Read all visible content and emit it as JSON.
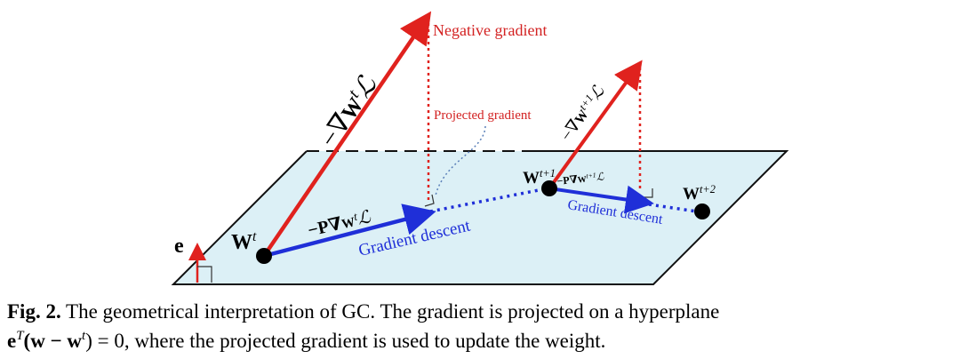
{
  "figure": {
    "labels": {
      "negative_gradient": "Negative gradient",
      "projected_gradient": "Projected gradient",
      "gradient_descent_1": "Gradient descent",
      "gradient_descent_2": "Gradient descent",
      "e": "e",
      "w_t": [
        "W",
        "t"
      ],
      "w_t1": [
        "W",
        "t+1"
      ],
      "w_t2": [
        "W",
        "t+2"
      ],
      "neg_grad_t": [
        "−∇",
        "W",
        "t",
        "ℒ"
      ],
      "proj_grad_t": [
        "−P∇",
        "W",
        "t",
        "ℒ"
      ],
      "neg_grad_t1": [
        "−∇",
        "W",
        "t+1",
        "ℒ"
      ],
      "proj_grad_t1": [
        "−P∇",
        "W",
        "t+1",
        "ℒ"
      ]
    },
    "caption": {
      "number": "Fig. 2.",
      "line1": "The geometrical interpretation of GC. The gradient is projected on a hyperplane",
      "line2": [
        "e",
        "T",
        "(w − w",
        "t",
        ") = 0, where the projected gradient is used to update the weight."
      ]
    }
  }
}
